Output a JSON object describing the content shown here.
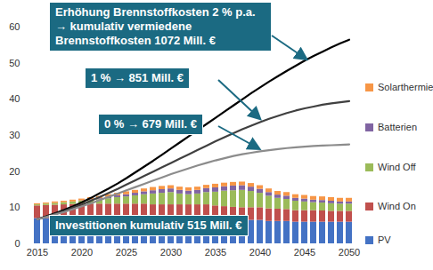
{
  "chart_data": {
    "type": "bar",
    "stacked": true,
    "legend": "right",
    "categories": [
      "2015",
      null,
      null,
      null,
      null,
      "2020",
      null,
      null,
      null,
      null,
      "2025",
      null,
      null,
      null,
      null,
      "2030",
      null,
      null,
      null,
      null,
      "2035",
      null,
      null,
      null,
      null,
      "2040",
      null,
      null,
      null,
      null,
      "2045",
      null,
      null,
      null,
      null,
      "2050"
    ],
    "ylim": [
      0,
      60
    ],
    "yticks": [
      0,
      10,
      20,
      30,
      40,
      50,
      60
    ],
    "series": [
      {
        "name": "PV",
        "type": "bar",
        "color": "#4472c4",
        "values": [
          7,
          7,
          7,
          7,
          7,
          7,
          7,
          7,
          7,
          7,
          7,
          7,
          7,
          6.8,
          6.8,
          6.8,
          6.8,
          6.8,
          6.8,
          6.8,
          6.5,
          6.5,
          6.5,
          6.5,
          6.5,
          6.5,
          6.2,
          6.2,
          6.2,
          6,
          6,
          6,
          6,
          6,
          6,
          6
        ]
      },
      {
        "name": "Wind On",
        "type": "bar",
        "color": "#c0504d",
        "values": [
          3.5,
          3.6,
          3.7,
          3.8,
          3.9,
          4,
          4,
          4,
          4,
          4,
          4,
          4,
          4,
          4,
          4,
          4,
          4,
          4,
          4,
          4,
          4,
          3.8,
          3.6,
          3.5,
          3.5,
          3.5,
          3.5,
          3.4,
          3.3,
          3.2,
          3.2,
          3.2,
          3.1,
          3,
          3,
          3
        ]
      },
      {
        "name": "Wind Off",
        "type": "bar",
        "color": "#9bbb59",
        "values": [
          0.3,
          0.4,
          0.5,
          0.6,
          0.7,
          0.8,
          1,
          1.2,
          1.5,
          1.8,
          2,
          2.3,
          2.6,
          3,
          3.2,
          3.4,
          3,
          2.8,
          3,
          3.4,
          3.8,
          4.3,
          4.6,
          4.8,
          4.5,
          4,
          3.5,
          3,
          2.8,
          2.6,
          2.4,
          2.2,
          2.2,
          2.1,
          2,
          2
        ]
      },
      {
        "name": "Batterien",
        "type": "bar",
        "color": "#8064a2",
        "values": [
          0,
          0,
          0,
          0,
          0,
          0.1,
          0.2,
          0.3,
          0.4,
          0.5,
          0.6,
          0.7,
          0.8,
          0.9,
          1,
          1,
          1,
          1,
          1,
          1.1,
          1.2,
          1.2,
          1.3,
          1.3,
          1.2,
          1.1,
          1,
          0.9,
          0.9,
          0.8,
          0.8,
          0.7,
          0.7,
          0.7,
          0.6,
          0.6
        ]
      },
      {
        "name": "Solarthermie",
        "type": "bar",
        "color": "#f79646",
        "values": [
          0.3,
          0.3,
          0.4,
          0.4,
          0.5,
          0.5,
          0.6,
          0.6,
          0.7,
          0.7,
          0.8,
          0.8,
          0.8,
          0.9,
          0.9,
          0.9,
          0.9,
          0.9,
          0.9,
          0.9,
          1,
          1,
          1,
          1,
          1,
          1,
          1,
          1,
          1,
          1,
          1,
          1,
          1,
          1,
          1,
          1
        ]
      },
      {
        "name": "Erhöhung Brennstoffkosten 2 % p.a. → kumulativ vermiedene Brennstoffkosten 1072 Mill. €",
        "type": "line",
        "color": "#000000",
        "values": [
          6.8,
          7.6,
          8.5,
          9.4,
          10.4,
          11.5,
          12.7,
          14,
          15.3,
          16.7,
          18.2,
          19.8,
          21.4,
          23,
          24.7,
          26.4,
          28.1,
          29.8,
          31.5,
          33.2,
          34.9,
          36.6,
          38.3,
          40,
          41.7,
          43.3,
          44.9,
          46.4,
          47.9,
          49.3,
          50.7,
          52,
          53.2,
          54.4,
          55.5,
          56.5
        ]
      },
      {
        "name": "1 % → 851 Mill. €",
        "type": "line",
        "color": "#404040",
        "values": [
          6.8,
          7.5,
          8.3,
          9.1,
          10,
          10.9,
          11.9,
          13,
          14.1,
          15.2,
          16.4,
          17.6,
          18.8,
          20,
          21.2,
          22.4,
          23.6,
          24.8,
          26,
          27.2,
          28.4,
          29.5,
          30.6,
          31.7,
          32.7,
          33.7,
          34.6,
          35.4,
          36.2,
          36.9,
          37.5,
          38,
          38.5,
          38.9,
          39.2,
          39.5
        ]
      },
      {
        "name": "0 % → 679 Mill. €",
        "type": "line",
        "color": "#8c8c8c",
        "values": [
          6.8,
          7.4,
          8.1,
          8.8,
          9.6,
          10.4,
          11.2,
          12.1,
          13,
          13.9,
          14.8,
          15.7,
          16.6,
          17.5,
          18.4,
          19.3,
          20.1,
          20.9,
          21.7,
          22.4,
          23.1,
          23.7,
          24.3,
          24.8,
          25.2,
          25.6,
          25.9,
          26.2,
          26.5,
          26.7,
          26.9,
          27.1,
          27.2,
          27.3,
          27.4,
          27.5
        ]
      }
    ],
    "annotations": [
      "Investitionen kumulativ 515 Mill. €"
    ]
  }
}
